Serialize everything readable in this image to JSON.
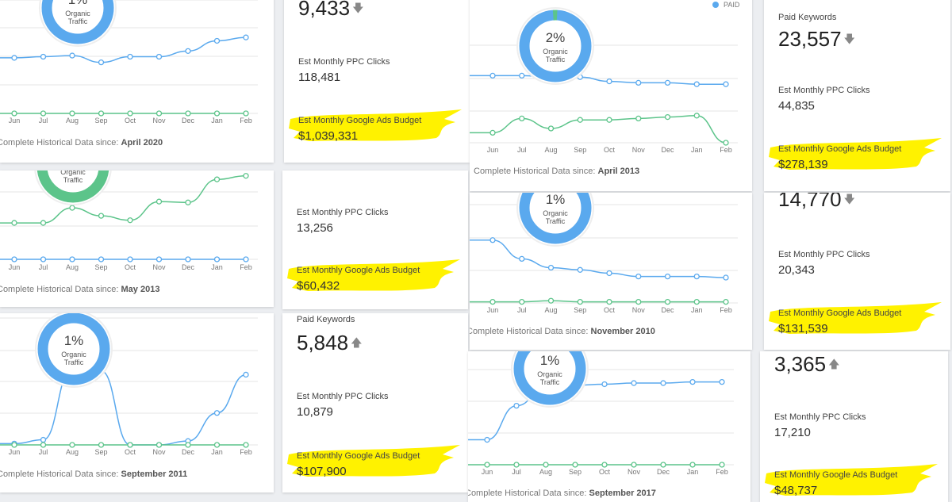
{
  "colors": {
    "organic": "#5aa9ee",
    "paid": "#5cc48a",
    "highlight": "#fff200"
  },
  "months": [
    "Jun",
    "Jul",
    "Aug",
    "Sep",
    "Oct",
    "Nov",
    "Dec",
    "Jan",
    "Feb"
  ],
  "footer_label": "Complete Historical Data since:",
  "ppc_label": "Est Monthly PPC Clicks",
  "budget_label": "Est Monthly Google Ads Budget",
  "paid_keywords_label": "Paid Keywords",
  "legend_paid": "PAID",
  "donut_label": "Organic Traffic",
  "chart_data": [
    {
      "type": "line",
      "categories": [
        "Jun",
        "Jul",
        "Aug",
        "Sep",
        "Oct",
        "Nov",
        "Dec",
        "Jan",
        "Feb"
      ],
      "ylim": [
        0,
        100
      ],
      "series": [
        {
          "color": "#5aa9ee",
          "values": [
            49,
            50,
            51,
            45,
            50,
            50,
            55,
            64,
            67
          ]
        },
        {
          "color": "#5cc48a",
          "values": [
            0,
            0,
            0,
            0,
            0,
            0,
            0,
            0,
            0
          ]
        }
      ]
    },
    {
      "type": "line",
      "categories": [
        "Jun",
        "Jul",
        "Aug",
        "Sep",
        "Oct",
        "Nov",
        "Dec",
        "Jan",
        "Feb"
      ],
      "ylim": [
        0,
        100
      ],
      "series": [
        {
          "color": "#5aa9ee",
          "values": [
            47,
            47,
            46,
            46,
            43,
            42,
            42,
            41,
            41
          ]
        },
        {
          "name": "PAID",
          "color": "#5cc48a",
          "values": [
            7,
            17,
            10,
            16,
            16,
            17,
            18,
            19,
            0
          ]
        }
      ]
    },
    {
      "type": "line",
      "categories": [
        "Jun",
        "Jul",
        "Aug",
        "Sep",
        "Oct",
        "Nov",
        "Dec",
        "Jan",
        "Feb"
      ],
      "ylim": [
        0,
        100
      ],
      "series": [
        {
          "color": "#5aa9ee",
          "values": [
            0,
            0,
            0,
            0,
            0,
            0,
            0,
            0,
            0
          ]
        },
        {
          "color": "#5cc48a",
          "values": [
            41,
            41,
            58,
            49,
            44,
            65,
            64,
            90,
            94
          ]
        }
      ]
    },
    {
      "type": "line",
      "categories": [
        "Jun",
        "Jul",
        "Aug",
        "Sep",
        "Oct",
        "Nov",
        "Dec",
        "Jan",
        "Feb"
      ],
      "ylim": [
        0,
        100
      ],
      "series": [
        {
          "color": "#5aa9ee",
          "values": [
            57,
            40,
            32,
            30,
            27,
            24,
            24,
            24,
            23
          ]
        },
        {
          "color": "#5cc48a",
          "values": [
            1,
            1,
            2,
            1,
            1,
            1,
            1,
            1,
            1
          ]
        }
      ]
    },
    {
      "type": "line",
      "categories": [
        "Jun",
        "Jul",
        "Aug",
        "Sep",
        "Oct",
        "Nov",
        "Dec",
        "Jan",
        "Feb"
      ],
      "ylim": [
        0,
        100
      ],
      "series": [
        {
          "color": "#5aa9ee",
          "values": [
            1,
            4,
            60,
            58,
            0,
            0,
            3,
            25,
            55
          ]
        },
        {
          "color": "#5cc48a",
          "values": [
            0,
            0,
            0,
            0,
            0,
            0,
            0,
            0,
            0
          ]
        }
      ]
    },
    {
      "type": "line",
      "categories": [
        "Jun",
        "Jul",
        "Aug",
        "Sep",
        "Oct",
        "Nov",
        "Dec",
        "Jan",
        "Feb"
      ],
      "ylim": [
        0,
        100
      ],
      "series": [
        {
          "color": "#5aa9ee",
          "values": [
            22,
            52,
            68,
            70,
            71,
            72,
            72,
            73,
            73
          ]
        },
        {
          "color": "#5cc48a",
          "values": [
            0,
            0,
            0,
            0,
            0,
            0,
            0,
            0,
            0
          ]
        }
      ]
    }
  ],
  "panels": [
    {
      "since": "April 2020",
      "donut_pct": "1%",
      "top_value": "9,433",
      "trend": "down",
      "ppc": "118,481",
      "budget": "$1,039,331"
    },
    {
      "since": "April 2013",
      "donut_pct": "2%",
      "top_value": "23,557",
      "trend": "down",
      "ppc": "44,835",
      "budget": "$278,139"
    },
    {
      "since": "May 2013",
      "donut_pct": "",
      "ppc": "13,256",
      "budget": "$60,432"
    },
    {
      "since": "November 2010",
      "donut_pct": "1%",
      "top_value": "14,770",
      "trend": "down",
      "ppc": "20,343",
      "budget": "$131,539"
    },
    {
      "since": "September 2011",
      "donut_pct": "1%",
      "top_value": "5,848",
      "trend": "up",
      "ppc": "10,879",
      "budget": "$107,900"
    },
    {
      "since": "September 2017",
      "donut_pct": "1%",
      "top_value": "3,365",
      "trend": "up",
      "ppc": "17,210",
      "budget": "$48,737"
    }
  ]
}
